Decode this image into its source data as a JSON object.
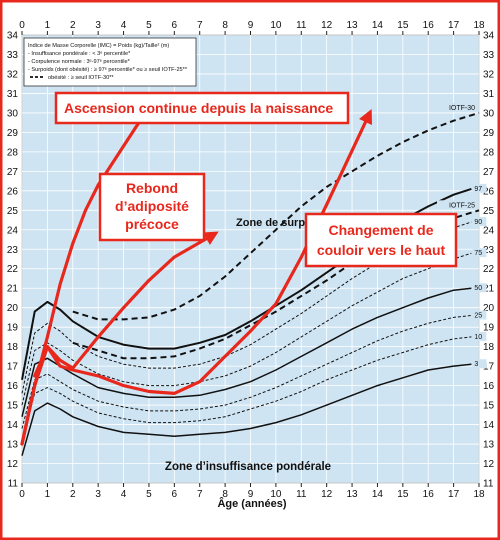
{
  "chart_data": {
    "type": "line",
    "xlabel": "Âge (années)",
    "ylim": [
      11,
      34
    ],
    "xlim": [
      0,
      18
    ],
    "x_ticks": [
      0,
      1,
      2,
      3,
      4,
      5,
      6,
      7,
      8,
      9,
      10,
      11,
      12,
      13,
      14,
      15,
      16,
      17,
      18
    ],
    "y_ticks": [
      11,
      12,
      13,
      14,
      15,
      16,
      17,
      18,
      19,
      20,
      21,
      22,
      23,
      24,
      25,
      26,
      27,
      28,
      29,
      30,
      31,
      32,
      33,
      34
    ],
    "grid": true,
    "background": "#cfe4f2",
    "legend": {
      "placement": "top-left",
      "lines": [
        "Indice de Masse Corporelle (IMC) = Poids (kg)/Taille² (m)",
        "- Insuffisance pondérale : < 3ᵉ percentile*",
        "- Corpulence normale : 3ᵉ-97ᵉ percentile*",
        "- Surpoids (dont obésité) : ≥ 97ᵉ percentile* ou ≥ seuil IOTF-25**",
        "obésité : ≥ seuil IOTF-30**"
      ]
    },
    "series": [
      {
        "name": "97",
        "style": "solid",
        "width": 2,
        "x": [
          0,
          0.5,
          1,
          1.5,
          2,
          3,
          4,
          5,
          6,
          7,
          8,
          9,
          10,
          11,
          12,
          13,
          14,
          15,
          16,
          17,
          17.7
        ],
        "y": [
          16.3,
          19.8,
          20.3,
          19.9,
          19.3,
          18.5,
          18.1,
          17.9,
          17.9,
          18.2,
          18.6,
          19.3,
          20.1,
          20.9,
          21.8,
          22.7,
          23.6,
          24.5,
          25.2,
          25.8,
          26.1
        ]
      },
      {
        "name": "90",
        "style": "dashed-fine",
        "width": 1,
        "x": [
          0,
          0.5,
          1,
          1.5,
          2,
          3,
          4,
          5,
          6,
          7,
          8,
          9,
          10,
          11,
          12,
          13,
          14,
          15,
          16,
          17,
          17.7
        ],
        "y": [
          15.6,
          18.7,
          19.2,
          18.8,
          18.2,
          17.5,
          17.1,
          16.9,
          16.9,
          17.1,
          17.5,
          18.1,
          18.9,
          19.7,
          20.6,
          21.5,
          22.3,
          23.0,
          23.6,
          24.1,
          24.4
        ]
      },
      {
        "name": "75",
        "style": "dashed-fine",
        "width": 1,
        "x": [
          0,
          0.5,
          1,
          1.5,
          2,
          3,
          4,
          5,
          6,
          7,
          8,
          9,
          10,
          11,
          12,
          13,
          14,
          15,
          16,
          17,
          17.7
        ],
        "y": [
          15.0,
          17.8,
          18.2,
          17.8,
          17.3,
          16.6,
          16.2,
          16.0,
          16.0,
          16.2,
          16.5,
          17.0,
          17.7,
          18.5,
          19.3,
          20.1,
          20.8,
          21.5,
          22.0,
          22.5,
          22.8
        ]
      },
      {
        "name": "50",
        "style": "solid",
        "width": 1.5,
        "x": [
          0,
          0.5,
          1,
          1.5,
          2,
          3,
          4,
          5,
          6,
          7,
          8,
          9,
          10,
          11,
          12,
          13,
          14,
          15,
          16,
          17,
          17.7
        ],
        "y": [
          14.4,
          17.1,
          17.4,
          17.0,
          16.6,
          15.9,
          15.6,
          15.4,
          15.4,
          15.5,
          15.8,
          16.2,
          16.8,
          17.5,
          18.2,
          18.9,
          19.5,
          20.0,
          20.5,
          20.9,
          21.0
        ]
      },
      {
        "name": "25",
        "style": "dashed-fine",
        "width": 1,
        "x": [
          0,
          0.5,
          1,
          1.5,
          2,
          3,
          4,
          5,
          6,
          7,
          8,
          9,
          10,
          11,
          12,
          13,
          14,
          15,
          16,
          17,
          17.7
        ],
        "y": [
          13.8,
          16.3,
          16.6,
          16.2,
          15.8,
          15.2,
          14.9,
          14.7,
          14.7,
          14.8,
          15.0,
          15.4,
          15.9,
          16.5,
          17.1,
          17.7,
          18.3,
          18.8,
          19.2,
          19.5,
          19.6
        ]
      },
      {
        "name": "10",
        "style": "dashed-fine",
        "width": 1,
        "x": [
          0,
          0.5,
          1,
          1.5,
          2,
          3,
          4,
          5,
          6,
          7,
          8,
          9,
          10,
          11,
          12,
          13,
          14,
          15,
          16,
          17,
          17.7
        ],
        "y": [
          13.2,
          15.6,
          15.9,
          15.6,
          15.2,
          14.6,
          14.3,
          14.1,
          14.1,
          14.2,
          14.4,
          14.8,
          15.2,
          15.7,
          16.3,
          16.8,
          17.3,
          17.7,
          18.1,
          18.4,
          18.5
        ]
      },
      {
        "name": "3",
        "style": "solid",
        "width": 1.5,
        "x": [
          0,
          0.5,
          1,
          1.5,
          2,
          3,
          4,
          5,
          6,
          7,
          8,
          9,
          10,
          11,
          12,
          13,
          14,
          15,
          16,
          17,
          17.7
        ],
        "y": [
          12.4,
          14.7,
          15.1,
          14.8,
          14.4,
          13.9,
          13.6,
          13.5,
          13.4,
          13.5,
          13.6,
          13.8,
          14.1,
          14.5,
          15.0,
          15.5,
          16.0,
          16.4,
          16.8,
          17.0,
          17.1
        ]
      },
      {
        "name": "IOTF-25",
        "style": "dashed-bold",
        "width": 2,
        "x": [
          2,
          3,
          4,
          5,
          6,
          7,
          8,
          9,
          10,
          11,
          12,
          13,
          14,
          15,
          16,
          17,
          18
        ],
        "y": [
          18.2,
          17.8,
          17.4,
          17.4,
          17.5,
          17.9,
          18.4,
          19.1,
          19.8,
          20.6,
          21.4,
          22.3,
          23.1,
          23.7,
          24.2,
          24.6,
          25.0
        ]
      },
      {
        "name": "IOTF-30",
        "style": "dashed-bold",
        "width": 2,
        "x": [
          2,
          3,
          4,
          5,
          6,
          7,
          8,
          9,
          10,
          11,
          12,
          13,
          14,
          15,
          16,
          17,
          18
        ],
        "y": [
          19.8,
          19.4,
          19.4,
          19.5,
          19.9,
          20.6,
          21.6,
          22.8,
          24.0,
          25.2,
          26.2,
          27.0,
          27.8,
          28.5,
          29.1,
          29.6,
          30.0
        ]
      }
    ],
    "zone_labels": {
      "surpoids": "Zone de surpoids",
      "insuffisance": "Zone d’insuffisance pondérale"
    },
    "annotations": [
      {
        "text": "Ascension continue depuis la naissance",
        "lines": [
          "Ascension continue depuis la naissance"
        ],
        "x": 1.5,
        "y": 30.8,
        "anchor": "start"
      },
      {
        "text": "Rebond d’adiposité précoce",
        "lines": [
          "Rebond",
          "d’adiposité",
          "précoce"
        ],
        "x": 6.1,
        "y": 26.0,
        "anchor": "middle"
      },
      {
        "text": "Changement de couloir vers le haut",
        "lines": [
          "Changement de",
          "couloir vers le haut"
        ],
        "x": 14.8,
        "y": 25.4,
        "anchor": "middle"
      }
    ],
    "red_arrows": [
      {
        "name": "ascension",
        "x": [
          0,
          0.5,
          1,
          1.5,
          2,
          2.5,
          3,
          3.5,
          4,
          4.5,
          5.1
        ],
        "y": [
          13.0,
          16.0,
          18.5,
          21.2,
          23.3,
          25.0,
          26.3,
          27.3,
          28.3,
          29.3,
          30.4
        ]
      },
      {
        "name": "rebond",
        "x": [
          0.5,
          1,
          1.5,
          2,
          3,
          4,
          5,
          6,
          7.6
        ],
        "y": [
          16.5,
          18.0,
          17.3,
          16.9,
          18.5,
          20.0,
          21.4,
          22.6,
          23.8
        ]
      },
      {
        "name": "couloir",
        "x": [
          0,
          0.5,
          1,
          1.5,
          2,
          3,
          4,
          5,
          6,
          7,
          8,
          9,
          10,
          11,
          12,
          13.7
        ],
        "y": [
          13.0,
          16.0,
          18.0,
          17.0,
          16.8,
          16.5,
          16.0,
          15.7,
          15.6,
          16.2,
          17.5,
          18.8,
          20.2,
          22.6,
          25.3,
          30.0
        ]
      }
    ]
  }
}
